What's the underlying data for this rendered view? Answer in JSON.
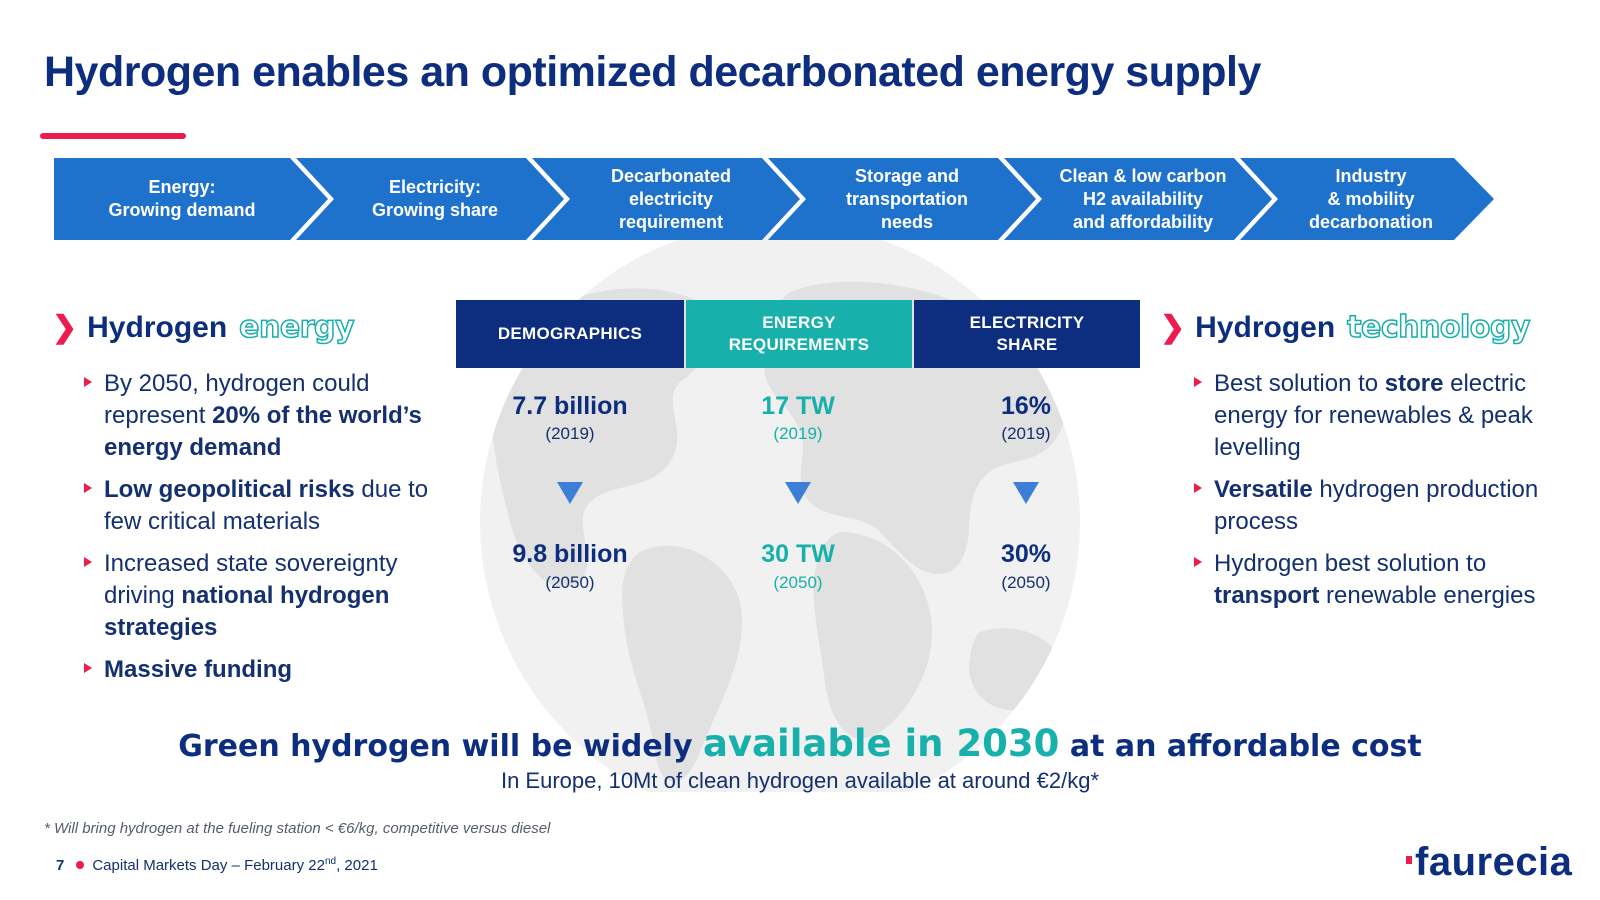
{
  "title": "Hydrogen enables an optimized decarbonated energy supply",
  "colors": {
    "navy": "#0d2e7e",
    "blue": "#1e72cc",
    "teal": "#17b0aa",
    "pink": "#ec1c4e"
  },
  "process": {
    "steps": [
      {
        "label": "Energy:\nGrowing demand"
      },
      {
        "label": "Electricity:\nGrowing share"
      },
      {
        "label": "Decarbonated\nelectricity\nrequirement"
      },
      {
        "label": "Storage and\ntransportation\nneeds"
      },
      {
        "label": "Clean & low carbon\nH2 availability\nand affordability"
      },
      {
        "label": "Industry\n& mobility\ndecarbonation"
      }
    ]
  },
  "left": {
    "heading_main": "Hydrogen",
    "heading_accent": "energy",
    "bullets": [
      {
        "parts": [
          {
            "t": "By 2050, hydrogen could represent "
          },
          {
            "t": "20% of the world’s energy demand",
            "b": true
          }
        ]
      },
      {
        "parts": [
          {
            "t": "Low geopolitical risks",
            "b": true
          },
          {
            "t": " due to few critical materials"
          }
        ]
      },
      {
        "parts": [
          {
            "t": "Increased state sovereignty driving "
          },
          {
            "t": "national hydrogen strategies",
            "b": true
          }
        ]
      },
      {
        "parts": [
          {
            "t": "Massive funding",
            "b": true
          }
        ]
      }
    ]
  },
  "right": {
    "heading_main": "Hydrogen",
    "heading_accent": "technology",
    "bullets": [
      {
        "parts": [
          {
            "t": "Best solution to "
          },
          {
            "t": "store",
            "b": true
          },
          {
            "t": " electric energy for renewables & peak levelling"
          }
        ]
      },
      {
        "parts": [
          {
            "t": "Versatile",
            "b": true
          },
          {
            "t": " hydrogen production process"
          }
        ]
      },
      {
        "parts": [
          {
            "t": "Hydrogen best solution to "
          },
          {
            "t": "transport",
            "b": true
          },
          {
            "t": " renewable energies"
          }
        ]
      }
    ]
  },
  "kpis": [
    {
      "header": "DEMOGRAPHICS",
      "v2019": "7.7 billion",
      "y2019": "(2019)",
      "v2050": "9.8 billion",
      "y2050": "(2050)"
    },
    {
      "header": "ENERGY\nREQUIREMENTS",
      "v2019": "17 TW",
      "y2019": "(2019)",
      "v2050": "30 TW",
      "y2050": "(2050)"
    },
    {
      "header": "ELECTRICITY\nSHARE",
      "v2019": "16%",
      "y2019": "(2019)",
      "v2050": "30%",
      "y2050": "(2050)"
    }
  ],
  "statement": {
    "part1": "Green hydrogen will be widely ",
    "highlight": "available in 2030",
    "part2": " at an affordable cost",
    "sub": "In Europe, 10Mt of clean hydrogen available at around €2/kg*"
  },
  "footnote": "* Will bring hydrogen at the fueling station < €6/kg, competitive versus diesel",
  "footer": {
    "page": "7",
    "text_before_sup": "Capital Markets Day – February 22",
    "sup": "nd",
    "text_after_sup": ", 2021"
  },
  "logo_text": "faurecia"
}
